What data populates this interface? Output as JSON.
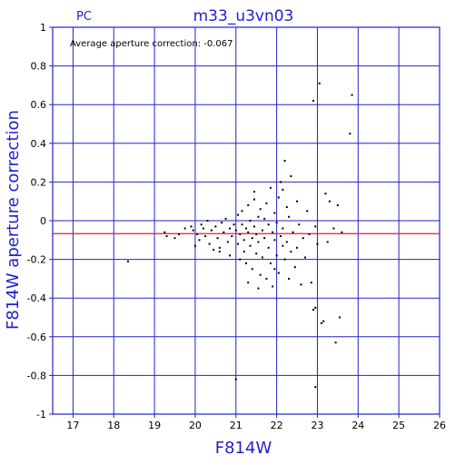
{
  "chart_data": {
    "type": "scatter",
    "title": "m33_u3vn03",
    "tag": "PC",
    "annotation": "Average aperture correction: -0.067",
    "xlabel": "F814W",
    "ylabel": "F814W aperture correction",
    "xlim": [
      16.5,
      26
    ],
    "ylim": [
      -1,
      1
    ],
    "x_ticks": [
      17,
      18,
      19,
      20,
      21,
      22,
      23,
      24,
      25,
      26
    ],
    "y_ticks": [
      -1,
      -0.8,
      -0.6,
      -0.4,
      -0.2,
      0,
      0.2,
      0.4,
      0.6,
      0.8,
      1
    ],
    "grid": true,
    "reference_line": {
      "y": -0.067,
      "color": "#dd2222"
    },
    "colors": {
      "frame": "#2222cc",
      "grid": "#2222cc",
      "points": "#000000"
    },
    "points": [
      [
        18.35,
        -0.21
      ],
      [
        19.25,
        -0.06
      ],
      [
        19.3,
        -0.08
      ],
      [
        19.5,
        -0.09
      ],
      [
        19.6,
        -0.07
      ],
      [
        19.75,
        -0.04
      ],
      [
        19.9,
        -0.03
      ],
      [
        19.95,
        -0.05
      ],
      [
        20.0,
        -0.13
      ],
      [
        20.05,
        -0.07
      ],
      [
        20.1,
        -0.1
      ],
      [
        20.15,
        -0.02
      ],
      [
        20.2,
        -0.04
      ],
      [
        20.25,
        -0.08
      ],
      [
        20.3,
        0.0
      ],
      [
        20.35,
        -0.12
      ],
      [
        20.4,
        -0.05
      ],
      [
        20.45,
        -0.15
      ],
      [
        20.5,
        -0.03
      ],
      [
        20.55,
        -0.09
      ],
      [
        20.6,
        -0.14
      ],
      [
        20.65,
        -0.01
      ],
      [
        20.7,
        -0.06
      ],
      [
        20.75,
        0.01
      ],
      [
        20.8,
        -0.11
      ],
      [
        20.85,
        -0.04
      ],
      [
        20.9,
        -0.08
      ],
      [
        20.95,
        -0.02
      ],
      [
        21.0,
        -0.05
      ],
      [
        21.05,
        0.03
      ],
      [
        21.05,
        -0.12
      ],
      [
        21.1,
        -0.07
      ],
      [
        21.1,
        -0.2
      ],
      [
        21.15,
        0.05
      ],
      [
        21.15,
        -0.02
      ],
      [
        21.2,
        -0.1
      ],
      [
        21.2,
        -0.16
      ],
      [
        21.25,
        -0.04
      ],
      [
        21.25,
        -0.22
      ],
      [
        21.3,
        0.08
      ],
      [
        21.3,
        -0.06
      ],
      [
        21.35,
        -0.13
      ],
      [
        21.35,
        0.0
      ],
      [
        21.4,
        -0.09
      ],
      [
        21.4,
        -0.25
      ],
      [
        21.45,
        0.11
      ],
      [
        21.45,
        -0.03
      ],
      [
        21.5,
        -0.17
      ],
      [
        21.5,
        -0.07
      ],
      [
        21.55,
        0.02
      ],
      [
        21.55,
        -0.11
      ],
      [
        21.6,
        -0.28
      ],
      [
        21.6,
        0.06
      ],
      [
        21.65,
        -0.05
      ],
      [
        21.65,
        -0.19
      ],
      [
        21.7,
        0.01
      ],
      [
        21.7,
        -0.09
      ],
      [
        21.75,
        -0.3
      ],
      [
        21.75,
        0.09
      ],
      [
        21.8,
        -0.14
      ],
      [
        21.8,
        -0.02
      ],
      [
        21.85,
        0.17
      ],
      [
        21.85,
        -0.22
      ],
      [
        21.9,
        -0.06
      ],
      [
        21.9,
        -0.34
      ],
      [
        21.95,
        0.04
      ],
      [
        21.95,
        -0.1
      ],
      [
        22.0,
        -0.01
      ],
      [
        22.0,
        -0.18
      ],
      [
        22.05,
        0.12
      ],
      [
        22.05,
        -0.27
      ],
      [
        22.1,
        -0.08
      ],
      [
        22.1,
        0.2
      ],
      [
        22.15,
        -0.13
      ],
      [
        22.15,
        -0.04
      ],
      [
        22.2,
        0.31
      ],
      [
        22.2,
        -0.2
      ],
      [
        22.25,
        0.07
      ],
      [
        22.25,
        -0.11
      ],
      [
        22.3,
        -0.3
      ],
      [
        22.3,
        0.02
      ],
      [
        22.35,
        -0.16
      ],
      [
        22.35,
        0.23
      ],
      [
        22.4,
        -0.06
      ],
      [
        22.45,
        -0.24
      ],
      [
        22.5,
        0.1
      ],
      [
        22.5,
        -0.14
      ],
      [
        22.55,
        -0.02
      ],
      [
        22.6,
        -0.33
      ],
      [
        22.65,
        -0.09
      ],
      [
        22.7,
        -0.19
      ],
      [
        22.75,
        0.05
      ],
      [
        22.8,
        -0.07
      ],
      [
        22.85,
        -0.32
      ],
      [
        22.9,
        -0.46
      ],
      [
        22.95,
        -0.03
      ],
      [
        23.0,
        -0.12
      ],
      [
        23.05,
        0.71
      ],
      [
        23.1,
        -0.53
      ],
      [
        23.2,
        0.14
      ],
      [
        23.3,
        0.1
      ],
      [
        23.4,
        -0.04
      ],
      [
        23.45,
        -0.63
      ],
      [
        23.5,
        0.08
      ],
      [
        23.55,
        -0.5
      ],
      [
        23.6,
        -0.06
      ],
      [
        23.8,
        0.45
      ],
      [
        23.85,
        0.65
      ],
      [
        22.9,
        0.62
      ],
      [
        22.95,
        -0.86
      ],
      [
        21.0,
        -0.82
      ],
      [
        22.95,
        -0.45
      ],
      [
        23.15,
        -0.52
      ],
      [
        23.25,
        -0.11
      ],
      [
        21.95,
        -0.25
      ],
      [
        21.3,
        -0.32
      ],
      [
        20.85,
        -0.18
      ],
      [
        21.55,
        -0.35
      ],
      [
        22.15,
        0.16
      ],
      [
        21.45,
        0.15
      ],
      [
        20.6,
        -0.16
      ]
    ]
  }
}
